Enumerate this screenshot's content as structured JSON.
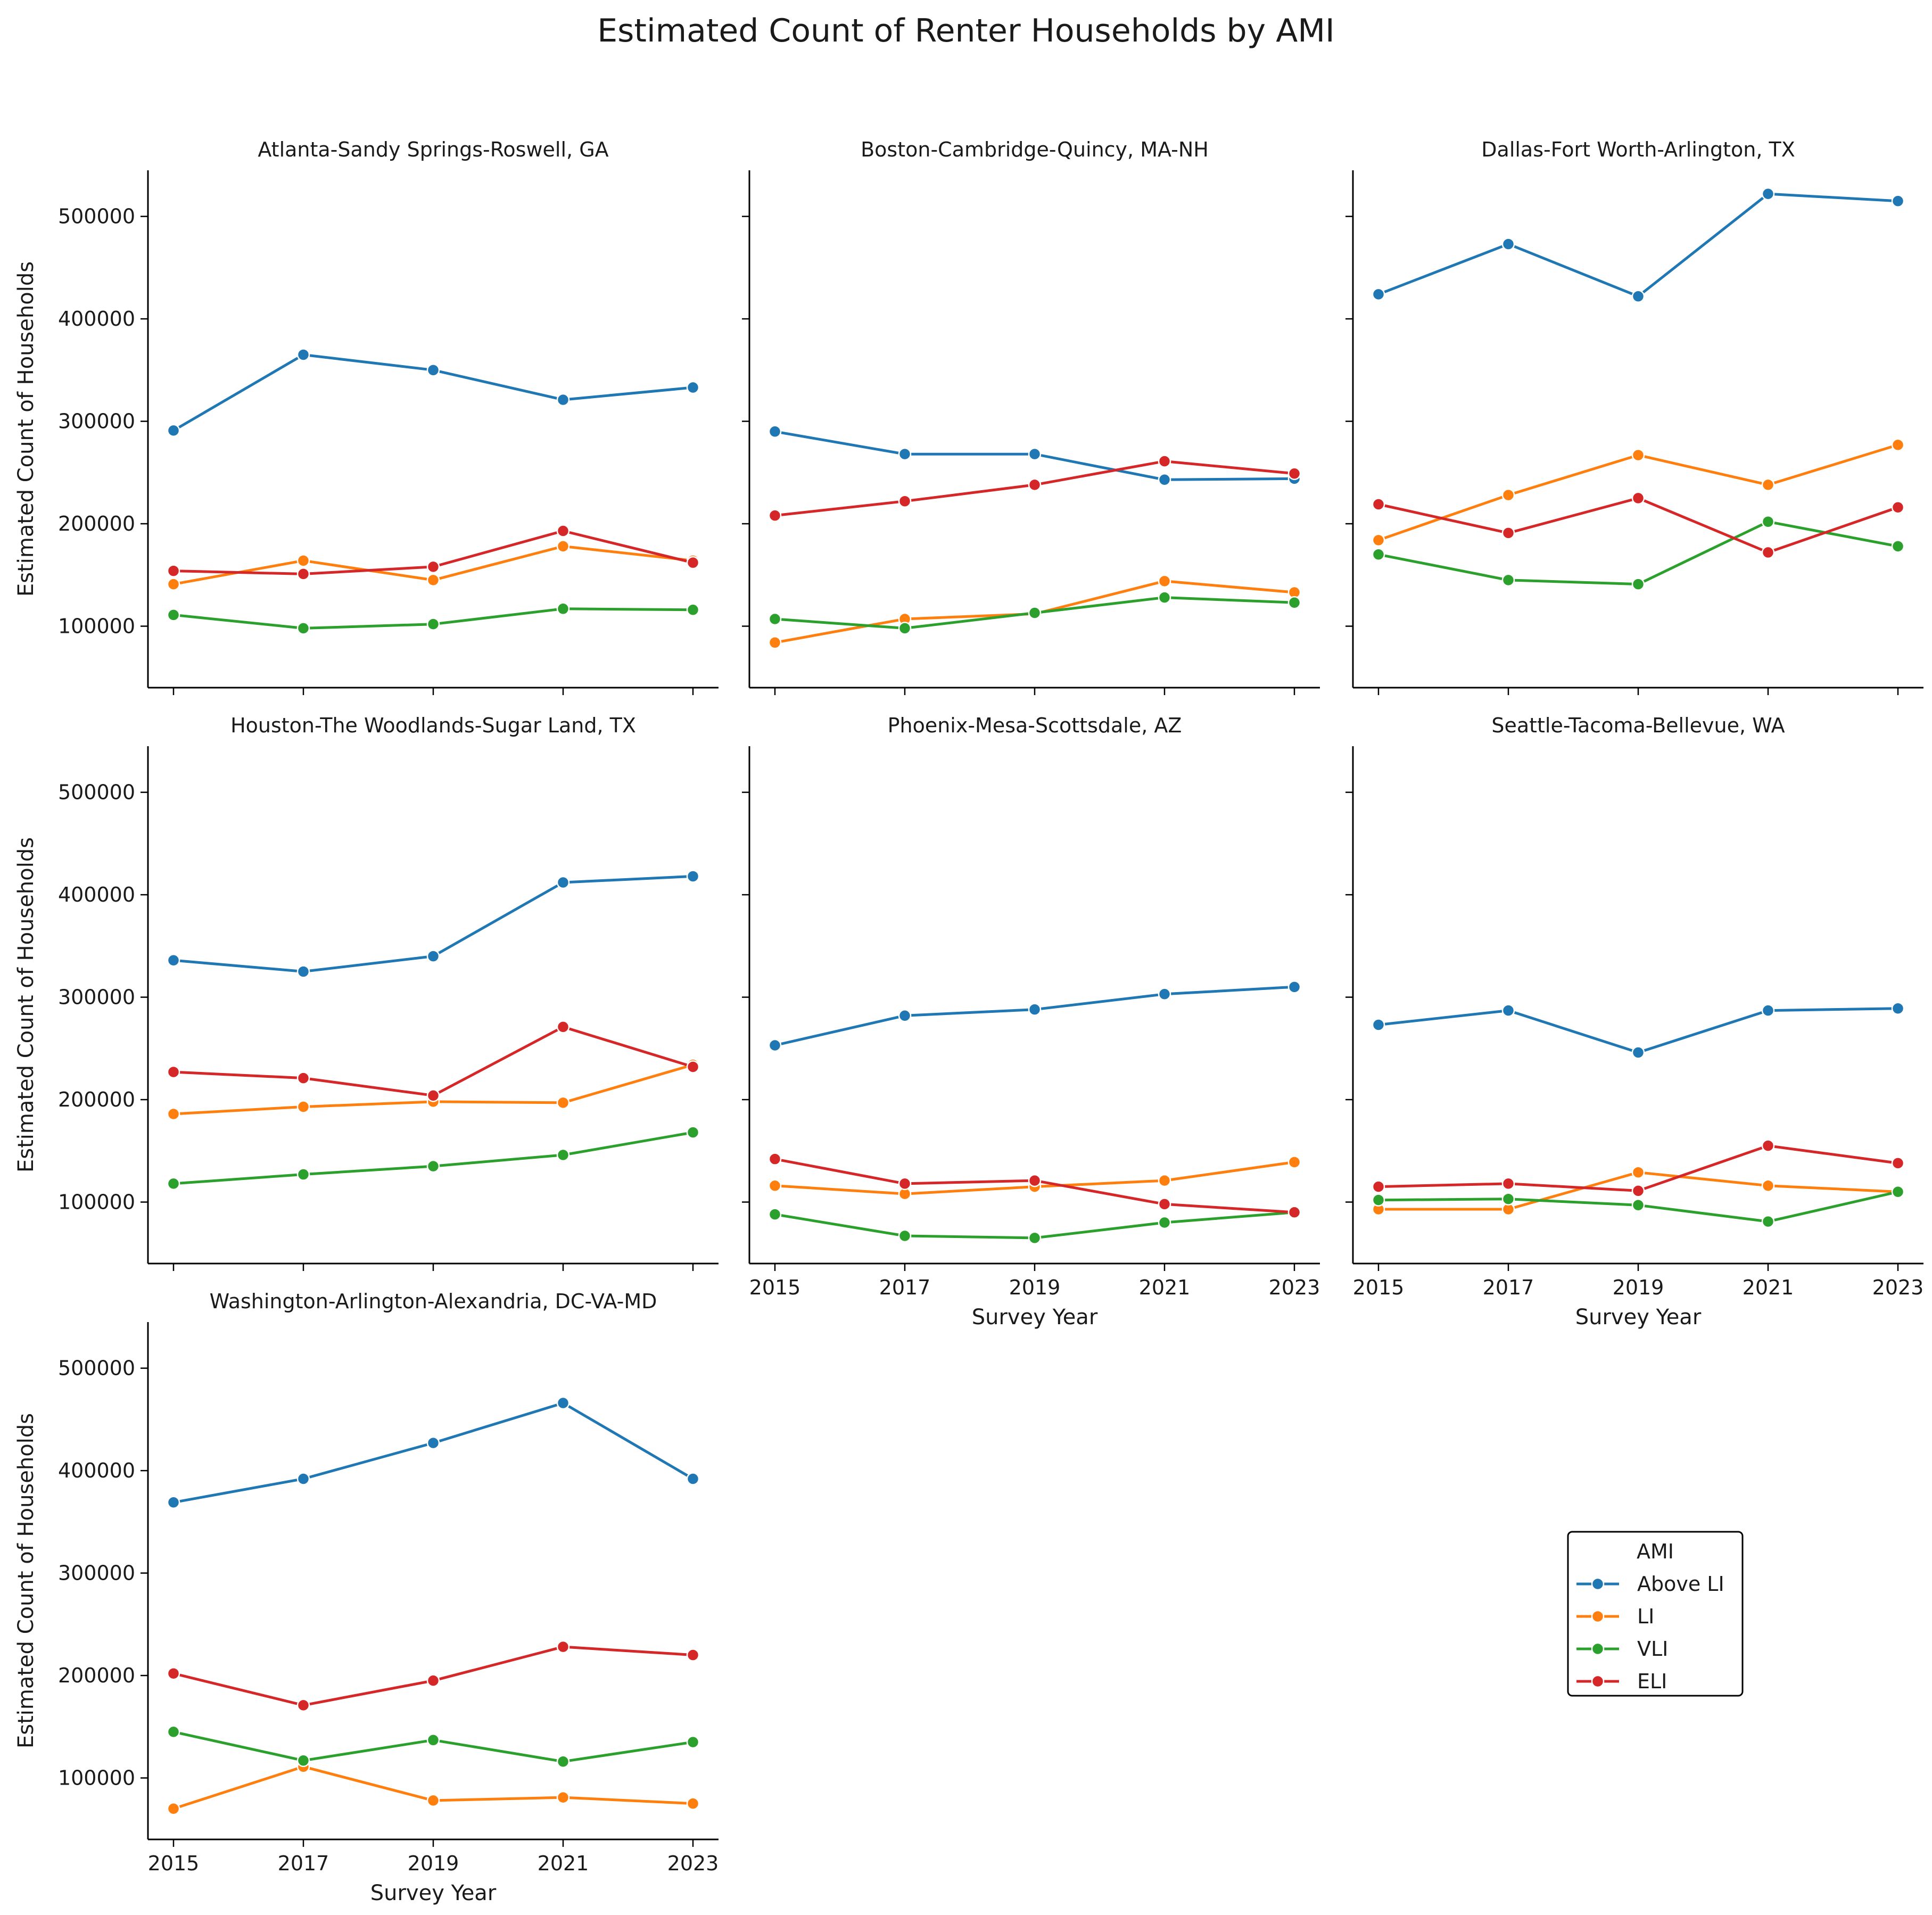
{
  "chart_data": {
    "type": "line",
    "title": "Estimated Count of Renter Households by AMI",
    "xlabel": "Survey Year",
    "ylabel": "Estimated Count of Households",
    "x": [
      2015,
      2017,
      2019,
      2021,
      2023
    ],
    "x_ticks": [
      "2015",
      "2017",
      "2019",
      "2021",
      "2023"
    ],
    "ylim": [
      40000,
      545000
    ],
    "y_ticks": [
      100000,
      200000,
      300000,
      400000,
      500000
    ],
    "y_tick_labels": [
      "100000",
      "200000",
      "300000",
      "400000",
      "500000"
    ],
    "grid": false,
    "legend": {
      "title": "AMI",
      "placement": "lower-right",
      "entries": [
        "Above LI",
        "LI",
        "VLI",
        "ELI"
      ]
    },
    "series_colors": {
      "Above LI": "#1f77b4",
      "LI": "#ff7f0e",
      "VLI": "#2ca02c",
      "ELI": "#d62728"
    },
    "panels": [
      {
        "title": "Atlanta-Sandy Springs-Roswell, GA",
        "series": [
          {
            "name": "Above LI",
            "values": [
              291000,
              365000,
              350000,
              321000,
              333000
            ]
          },
          {
            "name": "LI",
            "values": [
              141000,
              164000,
              145000,
              178000,
              164000
            ]
          },
          {
            "name": "VLI",
            "values": [
              111000,
              98000,
              102000,
              117000,
              116000
            ]
          },
          {
            "name": "ELI",
            "values": [
              154000,
              151000,
              158000,
              193000,
              162000
            ]
          }
        ]
      },
      {
        "title": "Boston-Cambridge-Quincy, MA-NH",
        "series": [
          {
            "name": "Above LI",
            "values": [
              290000,
              268000,
              268000,
              243000,
              244000
            ]
          },
          {
            "name": "LI",
            "values": [
              84000,
              107000,
              112000,
              144000,
              133000
            ]
          },
          {
            "name": "VLI",
            "values": [
              107000,
              98000,
              113000,
              128000,
              123000
            ]
          },
          {
            "name": "ELI",
            "values": [
              208000,
              222000,
              238000,
              261000,
              249000
            ]
          }
        ]
      },
      {
        "title": "Dallas-Fort Worth-Arlington, TX",
        "series": [
          {
            "name": "Above LI",
            "values": [
              424000,
              473000,
              422000,
              522000,
              515000
            ]
          },
          {
            "name": "LI",
            "values": [
              184000,
              228000,
              267000,
              238000,
              277000
            ]
          },
          {
            "name": "VLI",
            "values": [
              170000,
              145000,
              141000,
              202000,
              178000
            ]
          },
          {
            "name": "ELI",
            "values": [
              219000,
              191000,
              225000,
              172000,
              216000
            ]
          }
        ]
      },
      {
        "title": "Houston-The Woodlands-Sugar Land, TX",
        "series": [
          {
            "name": "Above LI",
            "values": [
              336000,
              325000,
              340000,
              412000,
              418000
            ]
          },
          {
            "name": "LI",
            "values": [
              186000,
              193000,
              198000,
              197000,
              234000
            ]
          },
          {
            "name": "VLI",
            "values": [
              118000,
              127000,
              135000,
              146000,
              168000
            ]
          },
          {
            "name": "ELI",
            "values": [
              227000,
              221000,
              204000,
              271000,
              232000
            ]
          }
        ]
      },
      {
        "title": "Phoenix-Mesa-Scottsdale, AZ",
        "series": [
          {
            "name": "Above LI",
            "values": [
              253000,
              282000,
              288000,
              303000,
              310000
            ]
          },
          {
            "name": "LI",
            "values": [
              116000,
              108000,
              115000,
              121000,
              139000
            ]
          },
          {
            "name": "VLI",
            "values": [
              88000,
              67000,
              65000,
              80000,
              90000
            ]
          },
          {
            "name": "ELI",
            "values": [
              142000,
              118000,
              121000,
              98000,
              90000
            ]
          }
        ]
      },
      {
        "title": "Seattle-Tacoma-Bellevue, WA",
        "series": [
          {
            "name": "Above LI",
            "values": [
              273000,
              287000,
              246000,
              287000,
              289000
            ]
          },
          {
            "name": "LI",
            "values": [
              93000,
              93000,
              129000,
              116000,
              110000
            ]
          },
          {
            "name": "VLI",
            "values": [
              102000,
              103000,
              97000,
              81000,
              110000
            ]
          },
          {
            "name": "ELI",
            "values": [
              115000,
              118000,
              111000,
              155000,
              138000
            ]
          }
        ]
      },
      {
        "title": "Washington-Arlington-Alexandria, DC-VA-MD",
        "series": [
          {
            "name": "Above LI",
            "values": [
              369000,
              392000,
              427000,
              466000,
              392000
            ]
          },
          {
            "name": "LI",
            "values": [
              70000,
              111000,
              78000,
              81000,
              75000
            ]
          },
          {
            "name": "VLI",
            "values": [
              145000,
              117000,
              137000,
              116000,
              135000
            ]
          },
          {
            "name": "ELI",
            "values": [
              202000,
              171000,
              195000,
              228000,
              220000
            ]
          }
        ]
      }
    ]
  }
}
